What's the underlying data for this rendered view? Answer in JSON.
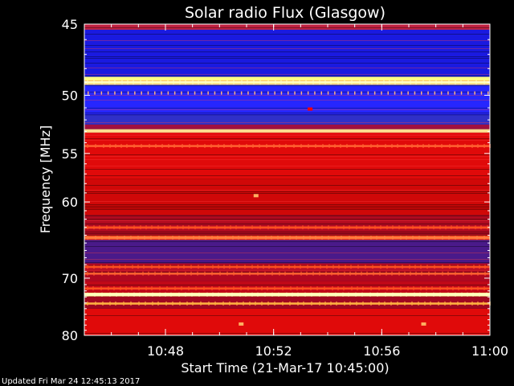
{
  "chart_data": {
    "type": "heatmap",
    "title": "Solar radio Flux (Glasgow)",
    "ylabel": "Frequency [MHz]",
    "xlabel": "Start Time (21-Mar-17 10:45:00)",
    "footer": "Updated Fri Mar 24 12:45:13 2017",
    "x_ticks": [
      {
        "label": "10:48",
        "minutes": 3
      },
      {
        "label": "10:52",
        "minutes": 7
      },
      {
        "label": "10:56",
        "minutes": 11
      },
      {
        "label": "11:00",
        "minutes": 15
      }
    ],
    "xlim_minutes": [
      0,
      15
    ],
    "y_ticks": [
      45,
      50,
      55,
      60,
      70,
      80
    ],
    "ylim": [
      45,
      80
    ],
    "y_scale": "reciprocal",
    "colormap": [
      "#000080",
      "#2020ff",
      "#8010a0",
      "#c00000",
      "#ff0000",
      "#ff8030",
      "#ffff90"
    ],
    "bands": [
      {
        "f1": 45.0,
        "f2": 45.35,
        "color": "#c02040"
      },
      {
        "f1": 45.35,
        "f2": 48.6,
        "color": "#1a1ae0"
      },
      {
        "f1": 48.6,
        "f2": 49.2,
        "color": "#ffff80"
      },
      {
        "f1": 49.2,
        "f2": 51.6,
        "color": "#2626ff"
      },
      {
        "f1": 51.6,
        "f2": 52.4,
        "color": "#3030c8"
      },
      {
        "f1": 52.4,
        "f2": 52.8,
        "color": "#a01040"
      },
      {
        "f1": 52.8,
        "f2": 53.1,
        "color": "#ffe090"
      },
      {
        "f1": 53.1,
        "f2": 57.5,
        "color": "#e00a0a"
      },
      {
        "f1": 57.5,
        "f2": 61.5,
        "color": "#d00808"
      },
      {
        "f1": 61.5,
        "f2": 64.0,
        "color": "#b00a20"
      },
      {
        "f1": 64.0,
        "f2": 64.6,
        "color": "#ff4020"
      },
      {
        "f1": 64.6,
        "f2": 67.8,
        "color": "#4a1a8a"
      },
      {
        "f1": 67.8,
        "f2": 70.5,
        "color": "#b00820"
      },
      {
        "f1": 70.5,
        "f2": 72.3,
        "color": "#c00818"
      },
      {
        "f1": 72.3,
        "f2": 72.9,
        "color": "#ffffa0"
      },
      {
        "f1": 72.9,
        "f2": 75.0,
        "color": "#a00820"
      },
      {
        "f1": 75.0,
        "f2": 80.0,
        "color": "#e00a0a"
      }
    ],
    "bright_lines": [
      {
        "f": 49.0,
        "color": "#ffffc0"
      },
      {
        "f": 54.3,
        "color": "#ff6030"
      },
      {
        "f": 63.0,
        "color": "#ff5020"
      },
      {
        "f": 64.3,
        "color": "#ff8040"
      },
      {
        "f": 68.3,
        "color": "#ff5020"
      },
      {
        "f": 69.3,
        "color": "#ff6030"
      },
      {
        "f": 71.6,
        "color": "#ff5020"
      },
      {
        "f": 72.6,
        "color": "#ffffc0"
      },
      {
        "f": 74.1,
        "color": "#ffb040"
      }
    ],
    "spots": [
      {
        "t": 6.35,
        "f": 59.3,
        "color": "#ffb060"
      },
      {
        "t": 8.35,
        "f": 51.1,
        "color": "#ff0000"
      },
      {
        "t": 5.8,
        "f": 77.8,
        "color": "#ffb060"
      },
      {
        "t": 12.55,
        "f": 77.8,
        "color": "#ffb060"
      }
    ]
  }
}
